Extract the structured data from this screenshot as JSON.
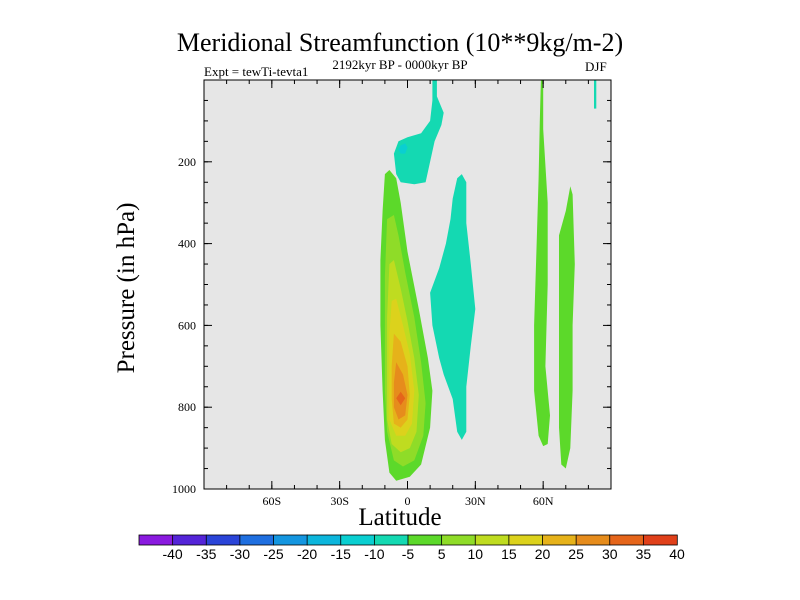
{
  "chart_data": {
    "type": "contour",
    "title": "Meridional Streamfunction (10**9kg/m-2)",
    "subtitle_left": "Expt = tewTi-tevta1",
    "subtitle_center": "2192kyr BP - 0000kyr BP",
    "subtitle_right": "DJF",
    "xlabel": "Latitude",
    "ylabel": "Pressure (in hPa)",
    "xlim": [
      -90,
      90
    ],
    "ylim": [
      1000,
      0
    ],
    "x_ticks": [
      {
        "value": -60,
        "label": "60S"
      },
      {
        "value": -30,
        "label": "30S"
      },
      {
        "value": 0,
        "label": "0"
      },
      {
        "value": 30,
        "label": "30N"
      },
      {
        "value": 60,
        "label": "60N"
      }
    ],
    "y_ticks": [
      {
        "value": 200,
        "label": "200"
      },
      {
        "value": 400,
        "label": "400"
      },
      {
        "value": 600,
        "label": "600"
      },
      {
        "value": 800,
        "label": "800"
      },
      {
        "value": 1000,
        "label": "1000"
      }
    ],
    "plot_background": "#e6e6e6",
    "colorbar": {
      "labels": [
        "-40",
        "-35",
        "-30",
        "-25",
        "-20",
        "-15",
        "-10",
        "-5",
        "5",
        "10",
        "15",
        "20",
        "25",
        "30",
        "35",
        "40"
      ],
      "colors": [
        "#8a1adf",
        "#5424d8",
        "#2a44d8",
        "#1f6fe0",
        "#1496e0",
        "#0cb6dc",
        "#0acfd1",
        "#14d9b2",
        "#5cd92a",
        "#8fdc28",
        "#bfdc20",
        "#dcd21c",
        "#e6b21a",
        "#e68c1c",
        "#e5651a",
        "#e0401a"
      ]
    },
    "regions": [
      {
        "name": "upper-trop-negative",
        "level": -5,
        "color": "#14d9b2",
        "points": [
          [
            11,
            0
          ],
          [
            13,
            0
          ],
          [
            13,
            40
          ],
          [
            16,
            80
          ],
          [
            15,
            110
          ],
          [
            12,
            150
          ],
          [
            10,
            200
          ],
          [
            8,
            250
          ],
          [
            3,
            255
          ],
          [
            -3,
            250
          ],
          [
            -5,
            230
          ],
          [
            -6,
            180
          ],
          [
            -4,
            150
          ],
          [
            0,
            140
          ],
          [
            6,
            130
          ],
          [
            10,
            100
          ],
          [
            11,
            50
          ]
        ]
      },
      {
        "name": "upper-trop-negative-inner",
        "level": -10,
        "color": "#0acfd1",
        "points": [
          [
            -3,
            160
          ],
          [
            -1,
            155
          ],
          [
            0,
            165
          ],
          [
            -1,
            180
          ],
          [
            -3,
            180
          ],
          [
            -4,
            170
          ]
        ]
      },
      {
        "name": "subtropical-negative-cell",
        "level": -5,
        "color": "#14d9b2",
        "points": [
          [
            22,
            240
          ],
          [
            24,
            230
          ],
          [
            26,
            250
          ],
          [
            26,
            350
          ],
          [
            28,
            450
          ],
          [
            30,
            560
          ],
          [
            28,
            650
          ],
          [
            26,
            750
          ],
          [
            26,
            860
          ],
          [
            24,
            880
          ],
          [
            22,
            860
          ],
          [
            20,
            780
          ],
          [
            16,
            720
          ],
          [
            14,
            680
          ],
          [
            11,
            600
          ],
          [
            10,
            520
          ],
          [
            14,
            460
          ],
          [
            17,
            400
          ],
          [
            19,
            340
          ],
          [
            20,
            290
          ]
        ]
      },
      {
        "name": "hadley-cell-05",
        "level": 5,
        "color": "#5cd92a",
        "points": [
          [
            -10,
            230
          ],
          [
            -8,
            220
          ],
          [
            -5,
            240
          ],
          [
            -3,
            300
          ],
          [
            0,
            420
          ],
          [
            5,
            560
          ],
          [
            9,
            680
          ],
          [
            11,
            760
          ],
          [
            10,
            850
          ],
          [
            6,
            940
          ],
          [
            1,
            970
          ],
          [
            -5,
            980
          ],
          [
            -8,
            960
          ],
          [
            -10,
            880
          ],
          [
            -11,
            760
          ],
          [
            -12,
            600
          ],
          [
            -12,
            440
          ],
          [
            -11,
            320
          ]
        ]
      },
      {
        "name": "hadley-cell-10",
        "level": 10,
        "color": "#8fdc28",
        "points": [
          [
            -9,
            340
          ],
          [
            -6,
            330
          ],
          [
            -4,
            380
          ],
          [
            -1,
            470
          ],
          [
            3,
            580
          ],
          [
            6,
            690
          ],
          [
            8,
            790
          ],
          [
            7,
            870
          ],
          [
            3,
            930
          ],
          [
            -2,
            945
          ],
          [
            -6,
            930
          ],
          [
            -9,
            860
          ],
          [
            -10,
            760
          ],
          [
            -10,
            620
          ],
          [
            -10,
            480
          ]
        ]
      },
      {
        "name": "hadley-cell-15",
        "level": 15,
        "color": "#bfdc20",
        "points": [
          [
            -8,
            450
          ],
          [
            -6,
            440
          ],
          [
            -3,
            510
          ],
          [
            0,
            590
          ],
          [
            3,
            680
          ],
          [
            5,
            770
          ],
          [
            4,
            860
          ],
          [
            1,
            900
          ],
          [
            -3,
            910
          ],
          [
            -7,
            890
          ],
          [
            -9,
            830
          ],
          [
            -9,
            720
          ],
          [
            -9,
            580
          ]
        ]
      },
      {
        "name": "hadley-cell-20",
        "level": 20,
        "color": "#dcd21c",
        "points": [
          [
            -7,
            540
          ],
          [
            -5,
            535
          ],
          [
            -2,
            600
          ],
          [
            1,
            670
          ],
          [
            3,
            760
          ],
          [
            2,
            840
          ],
          [
            -1,
            870
          ],
          [
            -5,
            870
          ],
          [
            -8,
            830
          ],
          [
            -8,
            730
          ],
          [
            -8,
            620
          ]
        ]
      },
      {
        "name": "hadley-cell-25",
        "level": 25,
        "color": "#e6b21a",
        "points": [
          [
            -6,
            620
          ],
          [
            -3,
            640
          ],
          [
            0,
            700
          ],
          [
            1,
            770
          ],
          [
            0,
            830
          ],
          [
            -3,
            850
          ],
          [
            -6,
            840
          ],
          [
            -7,
            780
          ],
          [
            -7,
            700
          ]
        ]
      },
      {
        "name": "hadley-cell-30",
        "level": 30,
        "color": "#e68c1c",
        "points": [
          [
            -5,
            690
          ],
          [
            -2,
            720
          ],
          [
            0,
            770
          ],
          [
            -1,
            820
          ],
          [
            -4,
            830
          ],
          [
            -6,
            800
          ],
          [
            -6,
            740
          ]
        ]
      },
      {
        "name": "hadley-cell-35",
        "level": 35,
        "color": "#e5651a",
        "points": [
          [
            -3,
            762
          ],
          [
            -1,
            778
          ],
          [
            -3,
            795
          ],
          [
            -5,
            778
          ]
        ]
      },
      {
        "name": "ferrel-cell-a",
        "level": 5,
        "color": "#5cd92a",
        "points": [
          [
            59,
            0
          ],
          [
            60,
            0
          ],
          [
            60,
            120
          ],
          [
            62,
            300
          ],
          [
            62,
            500
          ],
          [
            61,
            700
          ],
          [
            63,
            820
          ],
          [
            62,
            890
          ],
          [
            60,
            895
          ],
          [
            58,
            870
          ],
          [
            56,
            760
          ],
          [
            56,
            600
          ],
          [
            57,
            420
          ],
          [
            58,
            240
          ],
          [
            58.5,
            100
          ]
        ]
      },
      {
        "name": "ferrel-cell-b",
        "level": 5,
        "color": "#5cd92a",
        "points": [
          [
            72,
            260
          ],
          [
            73,
            280
          ],
          [
            74,
            450
          ],
          [
            73,
            600
          ],
          [
            73,
            760
          ],
          [
            72,
            900
          ],
          [
            70,
            950
          ],
          [
            68,
            940
          ],
          [
            67,
            850
          ],
          [
            67,
            700
          ],
          [
            67,
            550
          ],
          [
            67,
            380
          ],
          [
            70,
            320
          ]
        ]
      },
      {
        "name": "polar-sliver",
        "level": -5,
        "color": "#14d9b2",
        "points": [
          [
            82.5,
            0
          ],
          [
            83.5,
            0
          ],
          [
            83.5,
            70
          ],
          [
            82.5,
            70
          ]
        ]
      }
    ]
  }
}
